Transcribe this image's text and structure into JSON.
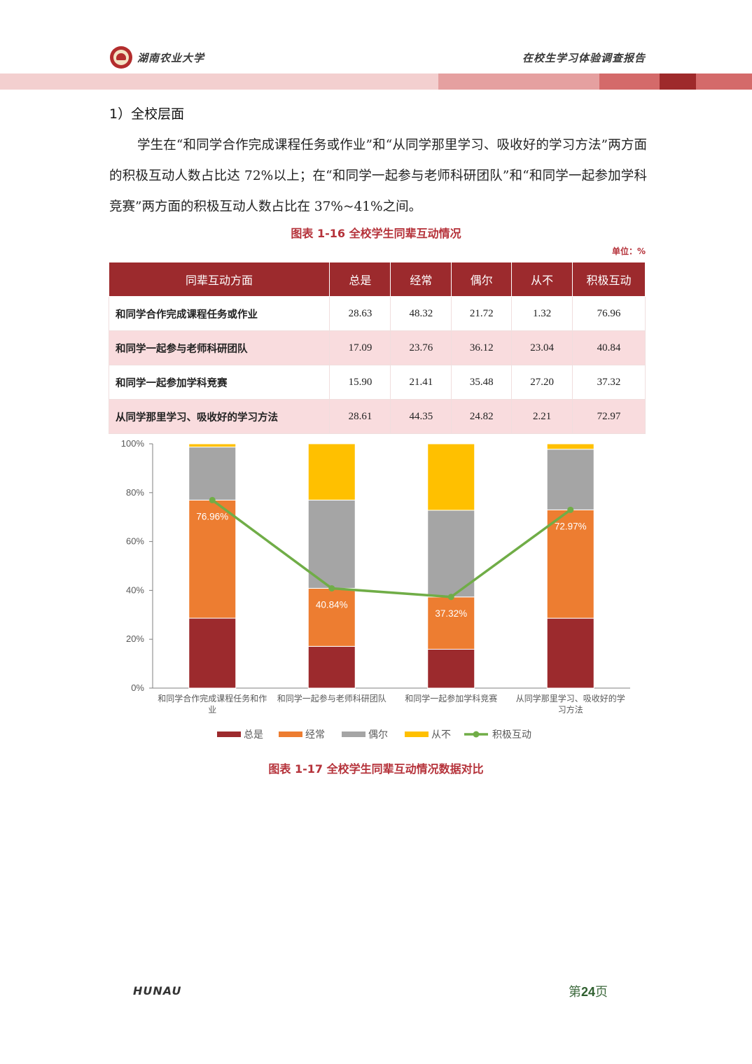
{
  "header": {
    "university": "湖南农业大学",
    "report_title": "在校生学习体验调查报告"
  },
  "section_title": "1）全校层面",
  "paragraph": "学生在“和同学合作完成课程任务或作业”和“从同学那里学习、吸收好的学习方法”两方面的积极互动人数占比达 72%以上；在“和同学一起参与老师科研团队”和“和同学一起参加学科竞赛”两方面的积极互动人数占比在 37%~41%之间。",
  "table_caption": "图表 1-16 全校学生同辈互动情况",
  "unit_label": "单位：%",
  "table": {
    "headers": [
      "同辈互动方面",
      "总是",
      "经常",
      "偶尔",
      "从不",
      "积极互动"
    ],
    "rows": [
      [
        "和同学合作完成课程任务或作业",
        "28.63",
        "48.32",
        "21.72",
        "1.32",
        "76.96"
      ],
      [
        "和同学一起参与老师科研团队",
        "17.09",
        "23.76",
        "36.12",
        "23.04",
        "40.84"
      ],
      [
        "和同学一起参加学科竞赛",
        "15.90",
        "21.41",
        "35.48",
        "27.20",
        "37.32"
      ],
      [
        "从同学那里学习、吸收好的学习方法",
        "28.61",
        "44.35",
        "24.82",
        "2.21",
        "72.97"
      ]
    ]
  },
  "chart_data": {
    "type": "bar",
    "stacked": true,
    "categories": [
      [
        "和同学合作完成课程任务和作",
        "业"
      ],
      [
        "和同学一起参与老师科研团队"
      ],
      [
        "和同学一起参加学科竞赛"
      ],
      [
        "从同学那里学习、吸收好的学",
        "习方法"
      ]
    ],
    "series": [
      {
        "name": "总是",
        "values": [
          28.63,
          17.09,
          15.9,
          28.61
        ],
        "color": "#9c2a2d"
      },
      {
        "name": "经常",
        "values": [
          48.32,
          23.76,
          21.41,
          44.35
        ],
        "color": "#ed7d31"
      },
      {
        "name": "偶尔",
        "values": [
          21.72,
          36.12,
          35.48,
          24.82
        ],
        "color": "#a5a5a5"
      },
      {
        "name": "从不",
        "values": [
          1.32,
          23.04,
          27.2,
          2.21
        ],
        "color": "#ffc000"
      }
    ],
    "line_series": {
      "name": "积极互动",
      "values": [
        76.96,
        40.84,
        37.32,
        72.97
      ],
      "color": "#70ad47"
    },
    "line_labels": [
      "76.96%",
      "40.84%",
      "37.32%",
      "72.97%"
    ],
    "y_ticks": [
      "0%",
      "20%",
      "40%",
      "60%",
      "80%",
      "100%"
    ],
    "ylim": [
      0,
      100
    ],
    "legend_position": "bottom",
    "grid": false
  },
  "chart_caption": "图表 1-17 全校学生同辈互动情况数据对比",
  "footer": {
    "brand": "HUNAU",
    "page_prefix": "第",
    "page_number": "24",
    "page_suffix": "页"
  }
}
